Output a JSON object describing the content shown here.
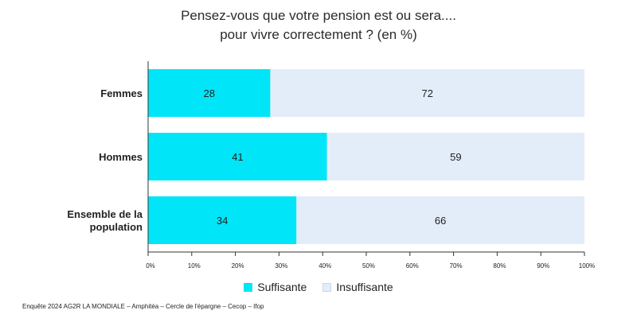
{
  "colors": {
    "suffisante": "#00e5f7",
    "insuffisante": "#e3edf9",
    "insuffisante_border": "#c9d6e6",
    "axis": "#333333",
    "text": "#222222"
  },
  "source": "Enquête 2024 AG2R LA MONDIALE – Amphitéa – Cercle de l'épargne – Cecop – Ifop",
  "chart_data": {
    "type": "bar",
    "orientation": "horizontal",
    "stacked": true,
    "title": [
      "Pensez-vous que votre pension est ou sera....",
      "pour vivre correctement ? (en %)"
    ],
    "categories": [
      [
        "Femmes"
      ],
      [
        "Hommes"
      ],
      [
        "Ensemble de la",
        "population"
      ]
    ],
    "series": [
      {
        "name": "Suffisante",
        "values": [
          28,
          41,
          34
        ]
      },
      {
        "name": "Insuffisante",
        "values": [
          72,
          59,
          66
        ]
      }
    ],
    "xlim": [
      0,
      100
    ],
    "xticks": [
      "0%",
      "10%",
      "20%",
      "30%",
      "40%",
      "50%",
      "60%",
      "70%",
      "80%",
      "90%",
      "100%"
    ],
    "grid": false,
    "legend": "bottom-center"
  }
}
